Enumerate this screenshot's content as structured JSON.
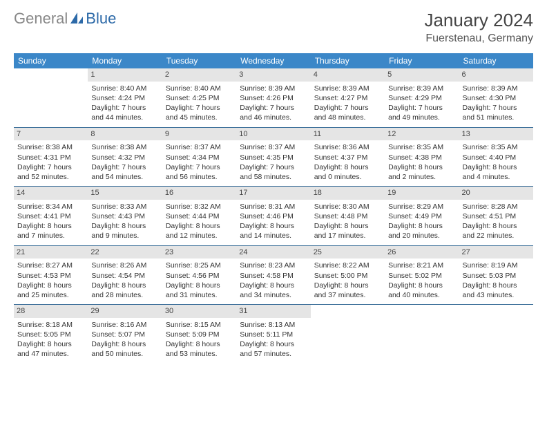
{
  "logo": {
    "text1": "General",
    "text2": "Blue"
  },
  "title": "January 2024",
  "location": "Fuerstenau, Germany",
  "colors": {
    "header_bg": "#3b87c8",
    "header_fg": "#ffffff",
    "daynum_bg": "#e5e5e5",
    "row_border": "#3b6e99",
    "logo_blue": "#2d6aa8",
    "logo_gray": "#888888"
  },
  "font": {
    "family": "Arial",
    "title_size": 26,
    "body_size": 10.5
  },
  "weekdays": [
    "Sunday",
    "Monday",
    "Tuesday",
    "Wednesday",
    "Thursday",
    "Friday",
    "Saturday"
  ],
  "weeks": [
    [
      {
        "day": "",
        "sunrise": "",
        "sunset": "",
        "daylight": ""
      },
      {
        "day": "1",
        "sunrise": "Sunrise: 8:40 AM",
        "sunset": "Sunset: 4:24 PM",
        "daylight": "Daylight: 7 hours and 44 minutes."
      },
      {
        "day": "2",
        "sunrise": "Sunrise: 8:40 AM",
        "sunset": "Sunset: 4:25 PM",
        "daylight": "Daylight: 7 hours and 45 minutes."
      },
      {
        "day": "3",
        "sunrise": "Sunrise: 8:39 AM",
        "sunset": "Sunset: 4:26 PM",
        "daylight": "Daylight: 7 hours and 46 minutes."
      },
      {
        "day": "4",
        "sunrise": "Sunrise: 8:39 AM",
        "sunset": "Sunset: 4:27 PM",
        "daylight": "Daylight: 7 hours and 48 minutes."
      },
      {
        "day": "5",
        "sunrise": "Sunrise: 8:39 AM",
        "sunset": "Sunset: 4:29 PM",
        "daylight": "Daylight: 7 hours and 49 minutes."
      },
      {
        "day": "6",
        "sunrise": "Sunrise: 8:39 AM",
        "sunset": "Sunset: 4:30 PM",
        "daylight": "Daylight: 7 hours and 51 minutes."
      }
    ],
    [
      {
        "day": "7",
        "sunrise": "Sunrise: 8:38 AM",
        "sunset": "Sunset: 4:31 PM",
        "daylight": "Daylight: 7 hours and 52 minutes."
      },
      {
        "day": "8",
        "sunrise": "Sunrise: 8:38 AM",
        "sunset": "Sunset: 4:32 PM",
        "daylight": "Daylight: 7 hours and 54 minutes."
      },
      {
        "day": "9",
        "sunrise": "Sunrise: 8:37 AM",
        "sunset": "Sunset: 4:34 PM",
        "daylight": "Daylight: 7 hours and 56 minutes."
      },
      {
        "day": "10",
        "sunrise": "Sunrise: 8:37 AM",
        "sunset": "Sunset: 4:35 PM",
        "daylight": "Daylight: 7 hours and 58 minutes."
      },
      {
        "day": "11",
        "sunrise": "Sunrise: 8:36 AM",
        "sunset": "Sunset: 4:37 PM",
        "daylight": "Daylight: 8 hours and 0 minutes."
      },
      {
        "day": "12",
        "sunrise": "Sunrise: 8:35 AM",
        "sunset": "Sunset: 4:38 PM",
        "daylight": "Daylight: 8 hours and 2 minutes."
      },
      {
        "day": "13",
        "sunrise": "Sunrise: 8:35 AM",
        "sunset": "Sunset: 4:40 PM",
        "daylight": "Daylight: 8 hours and 4 minutes."
      }
    ],
    [
      {
        "day": "14",
        "sunrise": "Sunrise: 8:34 AM",
        "sunset": "Sunset: 4:41 PM",
        "daylight": "Daylight: 8 hours and 7 minutes."
      },
      {
        "day": "15",
        "sunrise": "Sunrise: 8:33 AM",
        "sunset": "Sunset: 4:43 PM",
        "daylight": "Daylight: 8 hours and 9 minutes."
      },
      {
        "day": "16",
        "sunrise": "Sunrise: 8:32 AM",
        "sunset": "Sunset: 4:44 PM",
        "daylight": "Daylight: 8 hours and 12 minutes."
      },
      {
        "day": "17",
        "sunrise": "Sunrise: 8:31 AM",
        "sunset": "Sunset: 4:46 PM",
        "daylight": "Daylight: 8 hours and 14 minutes."
      },
      {
        "day": "18",
        "sunrise": "Sunrise: 8:30 AM",
        "sunset": "Sunset: 4:48 PM",
        "daylight": "Daylight: 8 hours and 17 minutes."
      },
      {
        "day": "19",
        "sunrise": "Sunrise: 8:29 AM",
        "sunset": "Sunset: 4:49 PM",
        "daylight": "Daylight: 8 hours and 20 minutes."
      },
      {
        "day": "20",
        "sunrise": "Sunrise: 8:28 AM",
        "sunset": "Sunset: 4:51 PM",
        "daylight": "Daylight: 8 hours and 22 minutes."
      }
    ],
    [
      {
        "day": "21",
        "sunrise": "Sunrise: 8:27 AM",
        "sunset": "Sunset: 4:53 PM",
        "daylight": "Daylight: 8 hours and 25 minutes."
      },
      {
        "day": "22",
        "sunrise": "Sunrise: 8:26 AM",
        "sunset": "Sunset: 4:54 PM",
        "daylight": "Daylight: 8 hours and 28 minutes."
      },
      {
        "day": "23",
        "sunrise": "Sunrise: 8:25 AM",
        "sunset": "Sunset: 4:56 PM",
        "daylight": "Daylight: 8 hours and 31 minutes."
      },
      {
        "day": "24",
        "sunrise": "Sunrise: 8:23 AM",
        "sunset": "Sunset: 4:58 PM",
        "daylight": "Daylight: 8 hours and 34 minutes."
      },
      {
        "day": "25",
        "sunrise": "Sunrise: 8:22 AM",
        "sunset": "Sunset: 5:00 PM",
        "daylight": "Daylight: 8 hours and 37 minutes."
      },
      {
        "day": "26",
        "sunrise": "Sunrise: 8:21 AM",
        "sunset": "Sunset: 5:02 PM",
        "daylight": "Daylight: 8 hours and 40 minutes."
      },
      {
        "day": "27",
        "sunrise": "Sunrise: 8:19 AM",
        "sunset": "Sunset: 5:03 PM",
        "daylight": "Daylight: 8 hours and 43 minutes."
      }
    ],
    [
      {
        "day": "28",
        "sunrise": "Sunrise: 8:18 AM",
        "sunset": "Sunset: 5:05 PM",
        "daylight": "Daylight: 8 hours and 47 minutes."
      },
      {
        "day": "29",
        "sunrise": "Sunrise: 8:16 AM",
        "sunset": "Sunset: 5:07 PM",
        "daylight": "Daylight: 8 hours and 50 minutes."
      },
      {
        "day": "30",
        "sunrise": "Sunrise: 8:15 AM",
        "sunset": "Sunset: 5:09 PM",
        "daylight": "Daylight: 8 hours and 53 minutes."
      },
      {
        "day": "31",
        "sunrise": "Sunrise: 8:13 AM",
        "sunset": "Sunset: 5:11 PM",
        "daylight": "Daylight: 8 hours and 57 minutes."
      },
      {
        "day": "",
        "sunrise": "",
        "sunset": "",
        "daylight": ""
      },
      {
        "day": "",
        "sunrise": "",
        "sunset": "",
        "daylight": ""
      },
      {
        "day": "",
        "sunrise": "",
        "sunset": "",
        "daylight": ""
      }
    ]
  ]
}
